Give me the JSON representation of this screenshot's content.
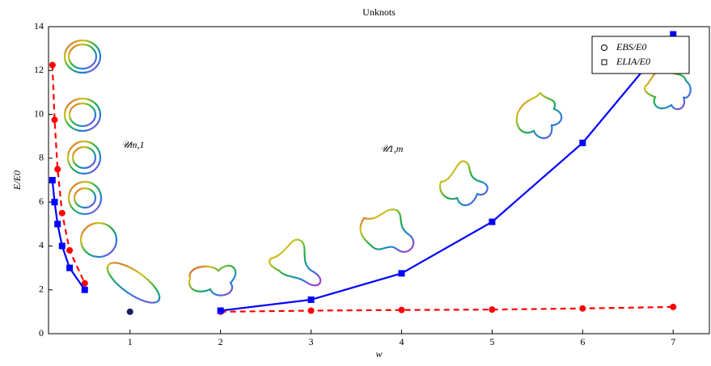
{
  "chart_data": {
    "type": "line",
    "title": "Unknots",
    "x_label": "w",
    "y_label": "E/E0",
    "annotations": [
      "𝒰m,1",
      "𝒰1,m"
    ],
    "xlim": [
      0.1,
      7.4
    ],
    "xticks": [
      1,
      2,
      3,
      4,
      5,
      6,
      7
    ],
    "ylim": [
      0,
      14
    ],
    "yticks": [
      0,
      2,
      4,
      6,
      8,
      10,
      12,
      14
    ],
    "legend": "top-right",
    "series": [
      {
        "color": "#ff0000",
        "marker": "circle",
        "dash": true,
        "x": [
          0.143,
          0.167,
          0.2,
          0.25,
          0.333,
          0.5
        ],
        "values": [
          12.25,
          9.75,
          7.5,
          5.5,
          3.8,
          2.3
        ]
      },
      {
        "color": "#0000ff",
        "marker": "square",
        "dash": false,
        "x": [
          0.143,
          0.167,
          0.2,
          0.25,
          0.333,
          0.5
        ],
        "values": [
          7.0,
          6.0,
          5.0,
          4.0,
          3.0,
          2.0
        ]
      },
      {
        "name": "EBS/E0",
        "color": "#ff0000",
        "marker": "circle",
        "dash": true,
        "x": [
          2,
          3,
          4,
          5,
          6,
          7
        ],
        "values": [
          1.0,
          1.05,
          1.08,
          1.1,
          1.15,
          1.22
        ]
      },
      {
        "name": "ELIA/E0",
        "color": "#0000ff",
        "marker": "square",
        "dash": false,
        "x": [
          2,
          3,
          4,
          5,
          6,
          7
        ],
        "values": [
          1.05,
          1.55,
          2.75,
          5.1,
          8.7,
          13.65
        ]
      },
      {
        "color": "#1a1a5e",
        "marker": "circle",
        "dash": false,
        "x": [
          1
        ],
        "values": [
          1.0
        ]
      }
    ]
  }
}
